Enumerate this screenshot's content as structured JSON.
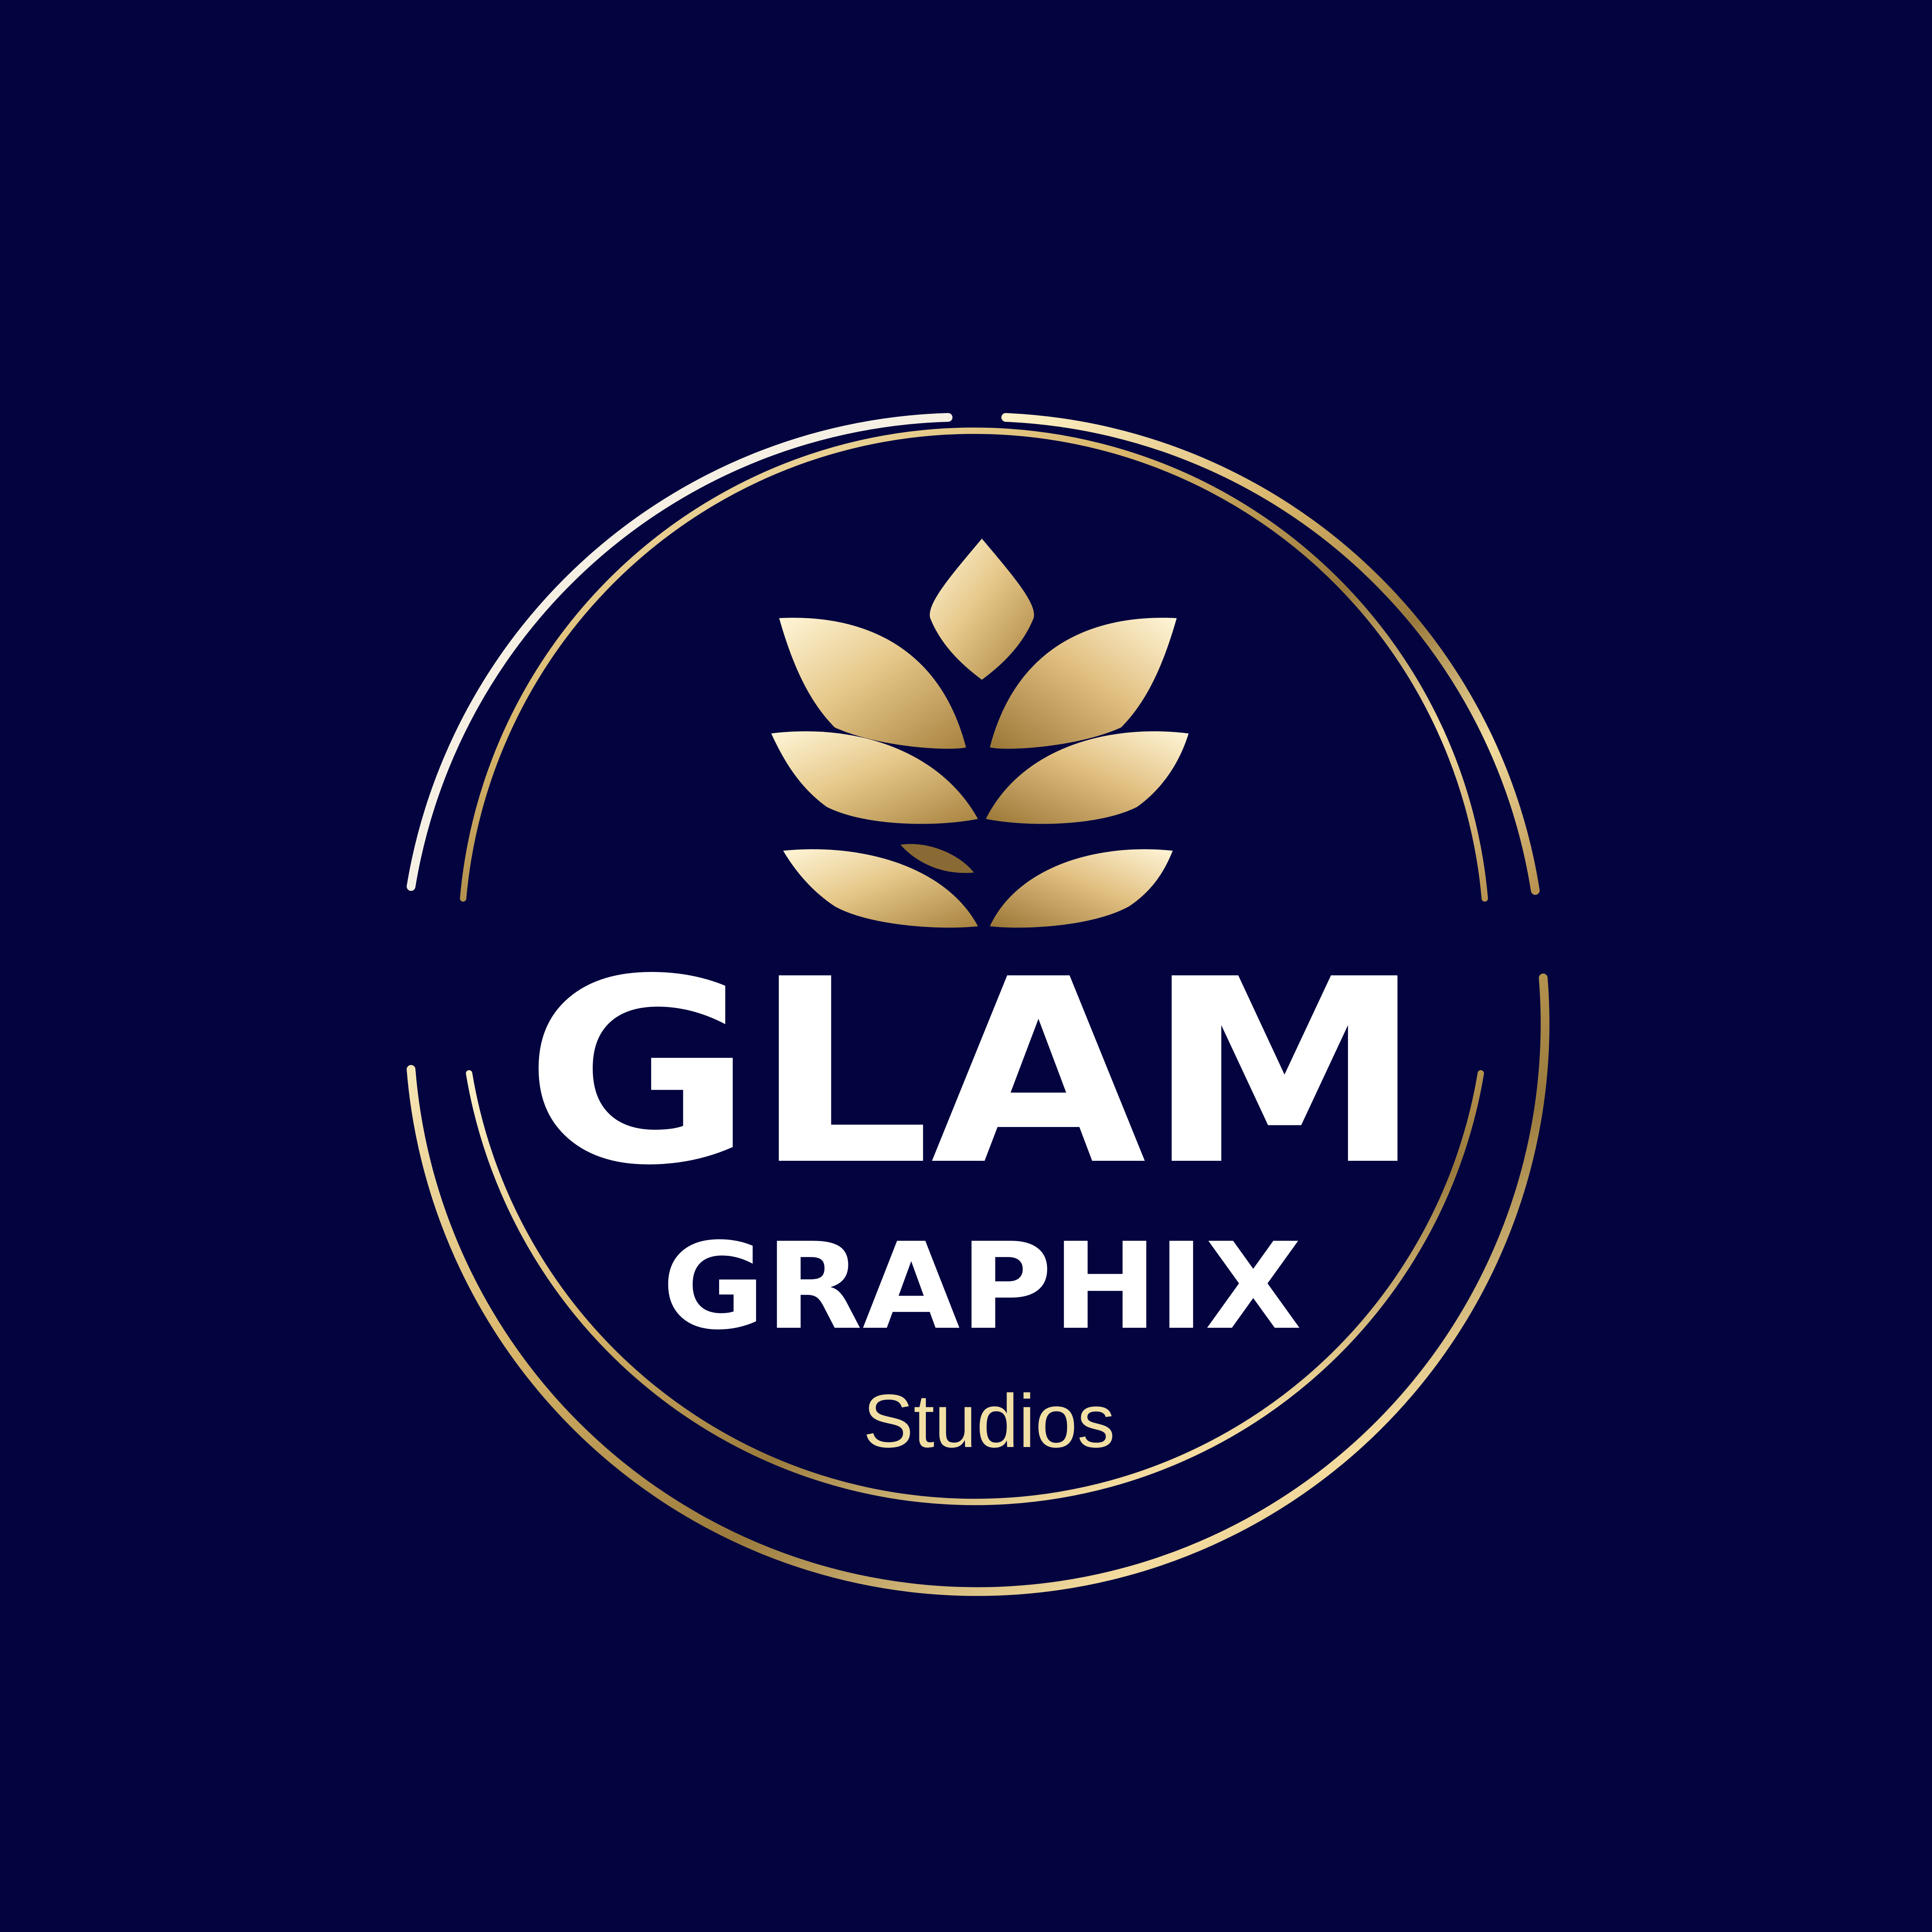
{
  "logo": {
    "primary_word": "GLAM",
    "secondary_word": "GRAPHIX",
    "tagline": "Studios",
    "emblem_icon": "lotus-leaf-icon"
  },
  "colors": {
    "background": "#03043f",
    "gold_light": "#fff3c9",
    "gold_mid": "#d8b56a",
    "gold_dark": "#9a7a3c",
    "text_white": "#ffffff",
    "tagline": "#f1dfa4"
  }
}
